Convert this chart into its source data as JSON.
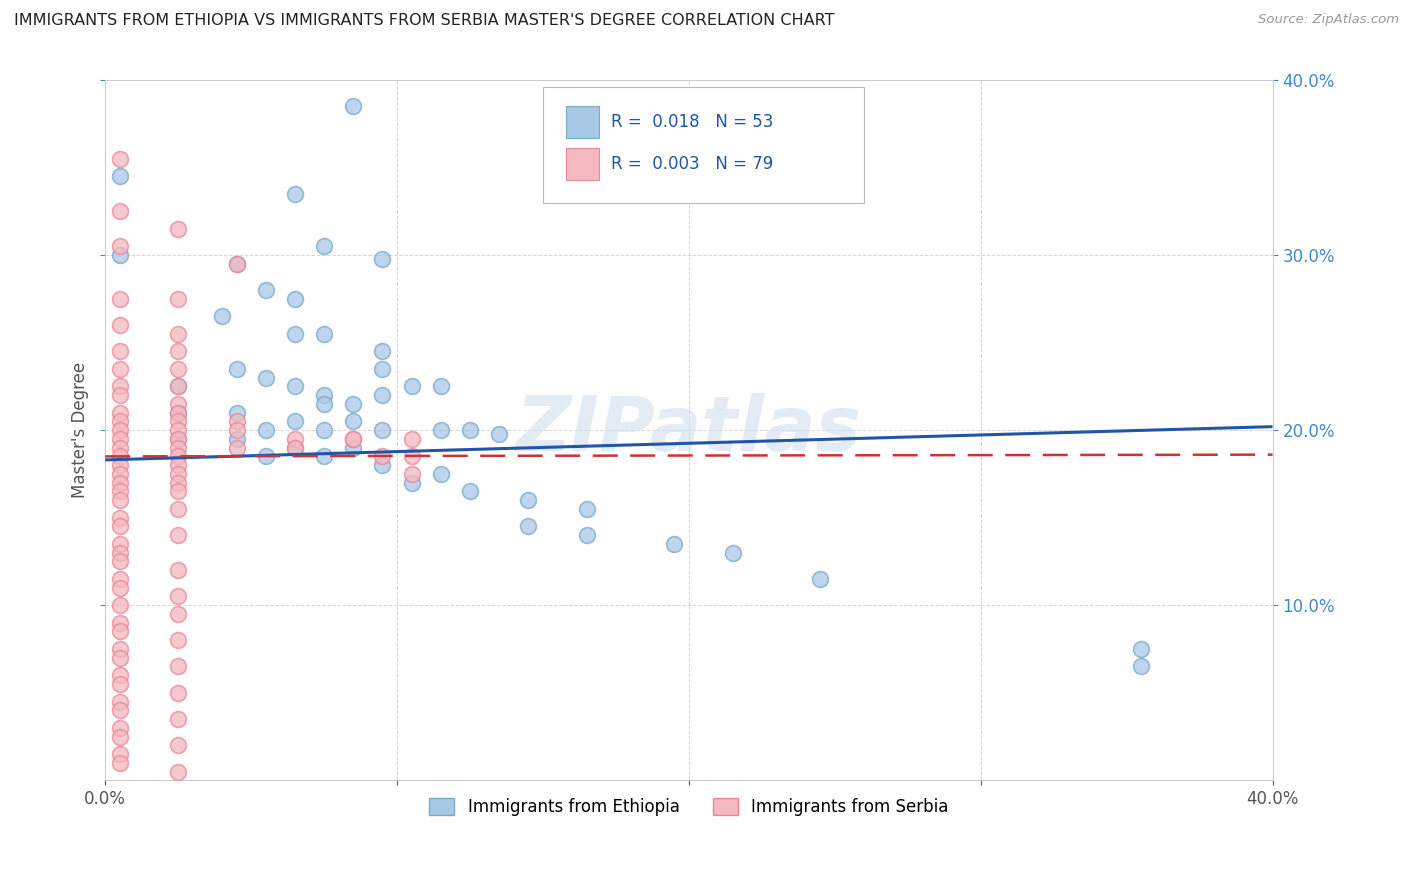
{
  "title": "IMMIGRANTS FROM ETHIOPIA VS IMMIGRANTS FROM SERBIA MASTER'S DEGREE CORRELATION CHART",
  "source": "Source: ZipAtlas.com",
  "ylabel": "Master's Degree",
  "xlim": [
    0.0,
    0.4
  ],
  "ylim": [
    0.0,
    0.4
  ],
  "color_ethiopia": "#a8c8e8",
  "color_serbia": "#f4b8c0",
  "color_ethiopia_edge": "#7aaac8",
  "color_serbia_edge": "#e88898",
  "watermark": "ZIPatlas",
  "legend_labels_bottom": [
    "Immigrants from Ethiopia",
    "Immigrants from Serbia"
  ],
  "ethiopia_scatter": [
    [
      0.085,
      0.385
    ],
    [
      0.005,
      0.345
    ],
    [
      0.065,
      0.335
    ],
    [
      0.005,
      0.3
    ],
    [
      0.045,
      0.295
    ],
    [
      0.075,
      0.305
    ],
    [
      0.095,
      0.298
    ],
    [
      0.055,
      0.28
    ],
    [
      0.065,
      0.275
    ],
    [
      0.04,
      0.265
    ],
    [
      0.065,
      0.255
    ],
    [
      0.075,
      0.255
    ],
    [
      0.095,
      0.245
    ],
    [
      0.095,
      0.235
    ],
    [
      0.045,
      0.235
    ],
    [
      0.055,
      0.23
    ],
    [
      0.025,
      0.225
    ],
    [
      0.065,
      0.225
    ],
    [
      0.105,
      0.225
    ],
    [
      0.115,
      0.225
    ],
    [
      0.075,
      0.22
    ],
    [
      0.095,
      0.22
    ],
    [
      0.075,
      0.215
    ],
    [
      0.085,
      0.215
    ],
    [
      0.025,
      0.21
    ],
    [
      0.045,
      0.21
    ],
    [
      0.065,
      0.205
    ],
    [
      0.085,
      0.205
    ],
    [
      0.055,
      0.2
    ],
    [
      0.075,
      0.2
    ],
    [
      0.095,
      0.2
    ],
    [
      0.115,
      0.2
    ],
    [
      0.125,
      0.2
    ],
    [
      0.135,
      0.198
    ],
    [
      0.025,
      0.195
    ],
    [
      0.045,
      0.195
    ],
    [
      0.065,
      0.19
    ],
    [
      0.085,
      0.19
    ],
    [
      0.055,
      0.185
    ],
    [
      0.075,
      0.185
    ],
    [
      0.095,
      0.18
    ],
    [
      0.115,
      0.175
    ],
    [
      0.105,
      0.17
    ],
    [
      0.125,
      0.165
    ],
    [
      0.145,
      0.16
    ],
    [
      0.165,
      0.155
    ],
    [
      0.145,
      0.145
    ],
    [
      0.165,
      0.14
    ],
    [
      0.195,
      0.135
    ],
    [
      0.215,
      0.13
    ],
    [
      0.245,
      0.115
    ],
    [
      0.355,
      0.075
    ],
    [
      0.355,
      0.065
    ]
  ],
  "serbia_scatter": [
    [
      0.005,
      0.355
    ],
    [
      0.005,
      0.325
    ],
    [
      0.025,
      0.315
    ],
    [
      0.005,
      0.305
    ],
    [
      0.045,
      0.295
    ],
    [
      0.005,
      0.275
    ],
    [
      0.025,
      0.275
    ],
    [
      0.005,
      0.26
    ],
    [
      0.025,
      0.255
    ],
    [
      0.005,
      0.245
    ],
    [
      0.025,
      0.245
    ],
    [
      0.005,
      0.235
    ],
    [
      0.025,
      0.235
    ],
    [
      0.005,
      0.225
    ],
    [
      0.025,
      0.225
    ],
    [
      0.005,
      0.22
    ],
    [
      0.025,
      0.215
    ],
    [
      0.005,
      0.21
    ],
    [
      0.025,
      0.21
    ],
    [
      0.005,
      0.205
    ],
    [
      0.025,
      0.205
    ],
    [
      0.045,
      0.205
    ],
    [
      0.005,
      0.2
    ],
    [
      0.025,
      0.2
    ],
    [
      0.045,
      0.2
    ],
    [
      0.065,
      0.195
    ],
    [
      0.005,
      0.195
    ],
    [
      0.025,
      0.195
    ],
    [
      0.085,
      0.195
    ],
    [
      0.005,
      0.19
    ],
    [
      0.025,
      0.19
    ],
    [
      0.045,
      0.19
    ],
    [
      0.065,
      0.19
    ],
    [
      0.005,
      0.185
    ],
    [
      0.025,
      0.185
    ],
    [
      0.005,
      0.18
    ],
    [
      0.025,
      0.18
    ],
    [
      0.005,
      0.175
    ],
    [
      0.025,
      0.175
    ],
    [
      0.005,
      0.17
    ],
    [
      0.025,
      0.17
    ],
    [
      0.005,
      0.165
    ],
    [
      0.025,
      0.165
    ],
    [
      0.005,
      0.16
    ],
    [
      0.025,
      0.155
    ],
    [
      0.005,
      0.15
    ],
    [
      0.005,
      0.145
    ],
    [
      0.025,
      0.14
    ],
    [
      0.005,
      0.135
    ],
    [
      0.005,
      0.13
    ],
    [
      0.005,
      0.125
    ],
    [
      0.025,
      0.12
    ],
    [
      0.005,
      0.115
    ],
    [
      0.005,
      0.11
    ],
    [
      0.025,
      0.105
    ],
    [
      0.005,
      0.1
    ],
    [
      0.025,
      0.095
    ],
    [
      0.005,
      0.09
    ],
    [
      0.005,
      0.085
    ],
    [
      0.025,
      0.08
    ],
    [
      0.005,
      0.075
    ],
    [
      0.005,
      0.07
    ],
    [
      0.025,
      0.065
    ],
    [
      0.005,
      0.06
    ],
    [
      0.005,
      0.055
    ],
    [
      0.025,
      0.05
    ],
    [
      0.005,
      0.045
    ],
    [
      0.005,
      0.04
    ],
    [
      0.025,
      0.035
    ],
    [
      0.005,
      0.03
    ],
    [
      0.005,
      0.025
    ],
    [
      0.025,
      0.02
    ],
    [
      0.005,
      0.015
    ],
    [
      0.005,
      0.01
    ],
    [
      0.025,
      0.005
    ],
    [
      0.085,
      0.195
    ],
    [
      0.105,
      0.195
    ],
    [
      0.095,
      0.185
    ],
    [
      0.105,
      0.185
    ],
    [
      0.105,
      0.175
    ]
  ],
  "ethiopia_trendline": [
    [
      0.0,
      0.183
    ],
    [
      0.4,
      0.202
    ]
  ],
  "serbia_trendline": [
    [
      0.0,
      0.185
    ],
    [
      0.4,
      0.186
    ]
  ]
}
